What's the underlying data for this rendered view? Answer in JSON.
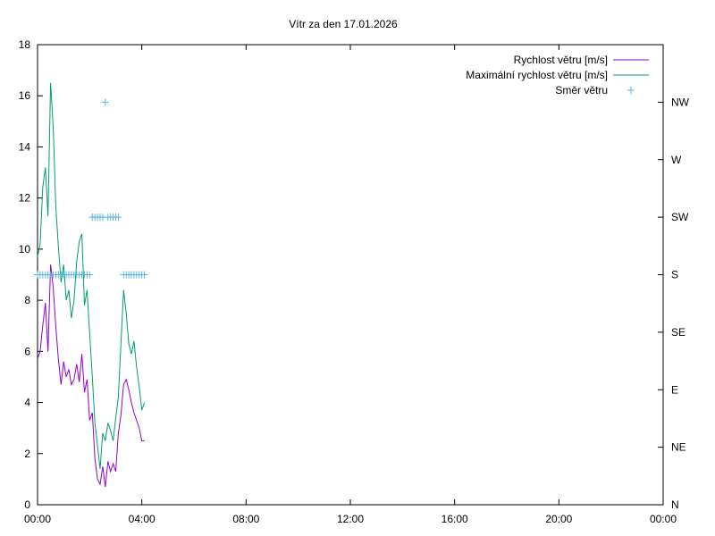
{
  "chart_data": {
    "type": "line",
    "title": "Vítr za den 17.01.2026",
    "xlim": [
      0,
      24
    ],
    "x_ticks": [
      "00:00",
      "04:00",
      "08:00",
      "12:00",
      "16:00",
      "20:00",
      "00:00"
    ],
    "ylim": [
      0,
      18
    ],
    "y_ticks": [
      "0",
      "2",
      "4",
      "6",
      "8",
      "10",
      "12",
      "14",
      "16",
      "18"
    ],
    "y2_ticks": [
      "N",
      "NE",
      "E",
      "SE",
      "S",
      "SW",
      "W",
      "NW"
    ],
    "legend_position": "top-right",
    "grid": false,
    "series": [
      {
        "name": "Rychlost větru [m/s]",
        "color": "#9400d3",
        "x": [
          0.0,
          0.1,
          0.2,
          0.3,
          0.4,
          0.5,
          0.6,
          0.7,
          0.8,
          0.9,
          1.0,
          1.1,
          1.2,
          1.3,
          1.4,
          1.5,
          1.6,
          1.7,
          1.8,
          1.9,
          2.0,
          2.1,
          2.2,
          2.3,
          2.4,
          2.5,
          2.6,
          2.7,
          2.8,
          2.9,
          3.0,
          3.1,
          3.2,
          3.3,
          3.4,
          3.5,
          3.6,
          3.7,
          3.8,
          3.9,
          4.0,
          4.1
        ],
        "values": [
          5.7,
          6.0,
          7.0,
          7.9,
          6.0,
          9.4,
          8.5,
          7.0,
          5.7,
          4.7,
          5.6,
          5.0,
          5.3,
          4.7,
          4.9,
          5.5,
          4.8,
          5.9,
          4.4,
          4.9,
          3.3,
          3.6,
          1.8,
          1.0,
          0.8,
          1.5,
          0.7,
          1.7,
          1.3,
          1.6,
          1.3,
          2.8,
          3.5,
          4.7,
          4.9,
          4.5,
          4.0,
          3.6,
          3.3,
          3.0,
          2.5,
          2.5
        ]
      },
      {
        "name": "Maximální rychlost větru [m/s]",
        "color": "#009e73",
        "x": [
          0.0,
          0.1,
          0.2,
          0.3,
          0.4,
          0.5,
          0.6,
          0.7,
          0.8,
          0.9,
          1.0,
          1.1,
          1.2,
          1.3,
          1.4,
          1.5,
          1.6,
          1.7,
          1.8,
          1.9,
          2.0,
          2.1,
          2.2,
          2.3,
          2.4,
          2.5,
          2.6,
          2.7,
          2.8,
          2.9,
          3.0,
          3.1,
          3.2,
          3.3,
          3.4,
          3.5,
          3.6,
          3.7,
          3.8,
          3.9,
          4.0,
          4.1
        ],
        "values": [
          9.7,
          10.2,
          12.4,
          13.2,
          11.3,
          16.5,
          14.8,
          11.7,
          10.1,
          8.7,
          9.4,
          8.0,
          8.4,
          7.3,
          8.0,
          9.5,
          10.3,
          10.6,
          7.8,
          8.4,
          6.7,
          5.0,
          3.2,
          2.3,
          1.4,
          2.8,
          2.5,
          3.2,
          2.9,
          2.5,
          3.4,
          4.2,
          6.3,
          8.4,
          7.5,
          6.3,
          5.9,
          6.4,
          5.4,
          4.6,
          3.7,
          4.0
        ]
      },
      {
        "name": "Směr větru",
        "color": "#56b4e9",
        "marker": "+",
        "axis": "right",
        "x": [
          0.0,
          0.1,
          0.2,
          0.3,
          0.4,
          0.5,
          0.6,
          0.7,
          0.8,
          0.9,
          1.0,
          1.1,
          1.2,
          1.3,
          1.4,
          1.5,
          1.6,
          1.7,
          1.8,
          1.9,
          2.0,
          2.1,
          2.2,
          2.3,
          2.4,
          2.5,
          2.6,
          2.7,
          2.8,
          2.9,
          3.0,
          3.1,
          3.3,
          3.4,
          3.5,
          3.6,
          3.7,
          3.8,
          3.9,
          4.0,
          4.1
        ],
        "values": [
          "S",
          "S",
          "S",
          "S",
          "S",
          "S",
          "S",
          "S",
          "S",
          "S",
          "S",
          "S",
          "S",
          "S",
          "S",
          "S",
          "S",
          "S",
          "S",
          "S",
          "S",
          "SW",
          "SW",
          "SW",
          "SW",
          "SW",
          "NW",
          "SW",
          "SW",
          "SW",
          "SW",
          "SW",
          "S",
          "S",
          "S",
          "S",
          "S",
          "S",
          "S",
          "S",
          "S"
        ]
      }
    ]
  }
}
